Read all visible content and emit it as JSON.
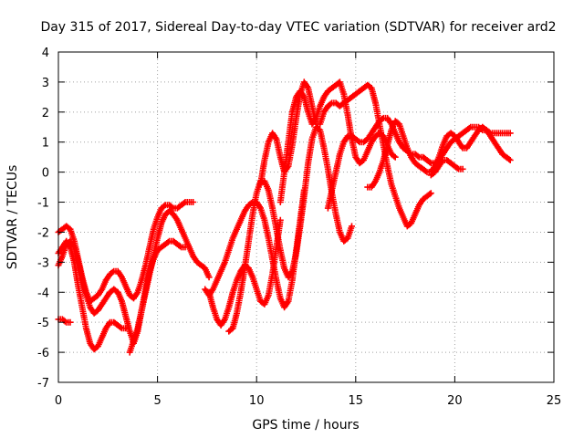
{
  "chart_data": {
    "type": "scatter",
    "title": "Day 315 of 2017, Sidereal Day-to-day VTEC variation (SDTVAR) for receiver ard2",
    "xlabel": "GPS time / hours",
    "ylabel": "SDTVAR / TECUs",
    "xlim": [
      0,
      25
    ],
    "ylim": [
      -7,
      4
    ],
    "xticks": [
      0,
      5,
      10,
      15,
      20,
      25
    ],
    "yticks": [
      -7,
      -6,
      -5,
      -4,
      -3,
      -2,
      -1,
      0,
      1,
      2,
      3,
      4
    ],
    "grid": true,
    "legend": "none",
    "marker": "+",
    "color": "#ff0000",
    "series": [
      {
        "x": [
          0.0,
          0.2,
          0.4,
          0.6,
          0.8,
          1.0,
          1.2,
          1.4,
          1.6,
          1.8,
          2.0,
          2.2,
          2.4,
          2.6,
          2.8,
          3.0,
          3.2,
          3.4,
          3.6,
          3.8,
          4.0,
          4.2,
          4.4,
          4.6,
          4.8,
          5.0,
          5.2,
          5.4,
          5.6,
          5.8,
          6.0,
          6.2,
          6.4,
          6.6,
          6.8
        ],
        "y": [
          -2.0,
          -1.9,
          -1.8,
          -1.9,
          -2.3,
          -2.9,
          -3.5,
          -4.0,
          -4.3,
          -4.2,
          -4.1,
          -3.9,
          -3.6,
          -3.4,
          -3.3,
          -3.3,
          -3.5,
          -3.8,
          -4.1,
          -4.2,
          -4.0,
          -3.6,
          -3.1,
          -2.5,
          -1.9,
          -1.5,
          -1.2,
          -1.1,
          -1.1,
          -1.2,
          -1.2,
          -1.1,
          -1.0,
          -1.0,
          -1.0
        ]
      },
      {
        "x": [
          0.0,
          0.2,
          0.4,
          0.6,
          0.8,
          1.0,
          1.2,
          1.4,
          1.6,
          1.8,
          2.0,
          2.2,
          2.4,
          2.6,
          2.8,
          3.0,
          3.2,
          3.4,
          3.6,
          3.8,
          4.0,
          4.2,
          4.4,
          4.6,
          4.8,
          5.0,
          5.2,
          5.4,
          5.6,
          5.8,
          6.0,
          6.2,
          6.4
        ],
        "y": [
          -3.1,
          -2.8,
          -2.4,
          -2.3,
          -2.5,
          -3.0,
          -3.6,
          -4.1,
          -4.5,
          -4.7,
          -4.6,
          -4.4,
          -4.2,
          -4.0,
          -3.9,
          -4.0,
          -4.3,
          -4.8,
          -5.3,
          -5.7,
          -5.3,
          -4.6,
          -3.9,
          -3.3,
          -2.9,
          -2.6,
          -2.5,
          -2.4,
          -2.3,
          -2.3,
          -2.4,
          -2.5,
          -2.5
        ]
      },
      {
        "x": [
          0.0,
          0.2,
          0.4,
          0.6,
          0.8,
          1.0,
          1.2,
          1.4,
          1.6,
          1.8,
          2.0,
          2.2,
          2.4,
          2.6,
          2.8,
          3.0,
          3.2,
          3.4
        ],
        "y": [
          -2.7,
          -2.5,
          -2.3,
          -2.5,
          -3.0,
          -3.8,
          -4.5,
          -5.2,
          -5.7,
          -5.9,
          -5.8,
          -5.5,
          -5.2,
          -5.0,
          -5.0,
          -5.1,
          -5.2,
          -5.2
        ]
      },
      {
        "x": [
          0.0,
          0.2,
          0.4,
          0.6
        ],
        "y": [
          -4.9,
          -4.9,
          -5.0,
          -5.0
        ]
      },
      {
        "x": [
          3.6,
          3.8,
          4.0,
          4.2,
          4.4,
          4.6,
          4.8,
          5.0,
          5.2,
          5.4,
          5.6,
          5.8,
          6.0,
          6.2,
          6.4,
          6.6,
          6.8,
          7.0,
          7.2,
          7.4,
          7.6
        ],
        "y": [
          -6.0,
          -5.6,
          -5.2,
          -4.6,
          -4.0,
          -3.4,
          -2.8,
          -2.2,
          -1.7,
          -1.4,
          -1.3,
          -1.4,
          -1.6,
          -1.9,
          -2.2,
          -2.5,
          -2.8,
          -3.0,
          -3.1,
          -3.2,
          -3.5
        ]
      },
      {
        "x": [
          7.4,
          7.6,
          7.8,
          8.0,
          8.2,
          8.4,
          8.6,
          8.8,
          9.0,
          9.2,
          9.4,
          9.6,
          9.8,
          10.0,
          10.2,
          10.4,
          10.6,
          10.8,
          11.0,
          11.2,
          11.4,
          11.6,
          11.8,
          12.0,
          12.2,
          12.4
        ],
        "y": [
          -3.9,
          -4.1,
          -3.9,
          -3.6,
          -3.3,
          -3.0,
          -2.6,
          -2.2,
          -1.9,
          -1.6,
          -1.3,
          -1.1,
          -1.0,
          -1.0,
          -1.2,
          -1.6,
          -2.2,
          -2.9,
          -3.6,
          -4.2,
          -4.5,
          -4.3,
          -3.6,
          -2.6,
          -1.6,
          -0.6
        ]
      },
      {
        "x": [
          7.6,
          7.8,
          8.0,
          8.2,
          8.4,
          8.6,
          8.8,
          9.0,
          9.2,
          9.4,
          9.6,
          9.8,
          10.0,
          10.2,
          10.4,
          10.6,
          10.8,
          11.0,
          11.2
        ],
        "y": [
          -4.0,
          -4.5,
          -4.9,
          -5.1,
          -4.9,
          -4.5,
          -4.0,
          -3.6,
          -3.3,
          -3.1,
          -3.2,
          -3.5,
          -3.9,
          -4.3,
          -4.4,
          -4.1,
          -3.4,
          -2.5,
          -1.6
        ]
      },
      {
        "x": [
          8.6,
          8.8,
          9.0,
          9.2,
          9.4,
          9.6,
          9.8,
          10.0,
          10.2,
          10.4,
          10.6,
          10.8,
          11.0,
          11.2,
          11.4,
          11.6,
          11.8,
          12.0,
          12.2,
          12.4,
          12.6,
          12.8,
          13.0,
          13.2,
          13.4,
          13.6,
          13.8,
          14.0,
          14.2,
          14.4,
          14.6,
          14.8
        ],
        "y": [
          -5.3,
          -5.2,
          -4.7,
          -4.0,
          -3.2,
          -2.3,
          -1.4,
          -0.7,
          -0.3,
          -0.3,
          -0.6,
          -1.2,
          -1.9,
          -2.6,
          -3.2,
          -3.5,
          -3.3,
          -2.7,
          -1.8,
          -0.8,
          0.3,
          1.1,
          1.5,
          1.4,
          0.8,
          0.1,
          -0.7,
          -1.4,
          -2.0,
          -2.3,
          -2.2,
          -1.8
        ]
      },
      {
        "x": [
          10.2,
          10.4,
          10.6,
          10.8,
          11.0,
          11.2,
          11.4,
          11.6,
          11.8,
          12.0,
          12.2,
          12.4,
          12.6,
          12.8,
          13.0,
          13.2,
          13.4,
          13.6,
          13.8,
          14.0,
          14.2,
          14.4,
          14.6,
          14.8,
          15.0,
          15.2,
          15.4,
          15.6,
          15.8,
          16.0,
          16.2,
          16.4,
          16.6,
          16.8,
          17.0,
          17.2,
          17.4,
          17.6,
          17.8,
          18.0,
          18.2,
          18.4,
          18.6,
          18.8
        ],
        "y": [
          -0.4,
          0.4,
          1.0,
          1.3,
          1.1,
          0.5,
          0.0,
          0.2,
          0.9,
          1.8,
          2.6,
          3.0,
          2.8,
          2.2,
          1.6,
          1.6,
          2.0,
          2.2,
          2.3,
          2.3,
          2.2,
          2.3,
          2.4,
          2.5,
          2.6,
          2.7,
          2.8,
          2.9,
          2.8,
          2.3,
          1.6,
          0.9,
          0.2,
          -0.4,
          -0.8,
          -1.2,
          -1.5,
          -1.8,
          -1.7,
          -1.4,
          -1.1,
          -0.9,
          -0.8,
          -0.7
        ]
      },
      {
        "x": [
          11.2,
          11.4,
          11.6,
          11.8,
          12.0,
          12.2,
          12.4,
          12.6,
          12.8,
          13.0,
          13.2,
          13.4,
          13.6,
          13.8,
          14.0,
          14.2,
          14.4,
          14.6,
          14.8,
          15.0,
          15.2,
          15.4,
          15.6,
          15.8,
          16.0,
          16.2,
          16.4,
          16.6,
          16.8,
          17.0
        ],
        "y": [
          -1.0,
          0.0,
          1.0,
          2.0,
          2.5,
          2.7,
          2.5,
          2.0,
          1.6,
          1.8,
          2.2,
          2.5,
          2.7,
          2.8,
          2.9,
          3.0,
          2.6,
          1.9,
          1.1,
          0.5,
          0.3,
          0.4,
          0.7,
          1.0,
          1.2,
          1.3,
          1.2,
          0.9,
          0.6,
          0.5
        ]
      },
      {
        "x": [
          13.6,
          13.8,
          14.0,
          14.2,
          14.4,
          14.6,
          14.8,
          15.0,
          15.2,
          15.4,
          15.6,
          15.8,
          16.0,
          16.2,
          16.4,
          16.6,
          16.8,
          17.0,
          17.2,
          17.4,
          17.6,
          17.8,
          18.0,
          18.2,
          18.4,
          18.6,
          18.8,
          19.0,
          19.2,
          19.4,
          19.6,
          19.8,
          20.0,
          20.2,
          20.4,
          20.6,
          20.8,
          21.0,
          21.2,
          21.4,
          21.6,
          21.8,
          22.0,
          22.2,
          22.4,
          22.6,
          22.8
        ],
        "y": [
          -1.2,
          -0.6,
          0.0,
          0.6,
          1.0,
          1.2,
          1.2,
          1.1,
          1.0,
          1.0,
          1.1,
          1.3,
          1.5,
          1.7,
          1.8,
          1.8,
          1.6,
          1.3,
          1.0,
          0.8,
          0.7,
          0.6,
          0.6,
          0.5,
          0.5,
          0.4,
          0.3,
          0.3,
          0.4,
          0.6,
          0.8,
          1.0,
          1.1,
          1.2,
          1.3,
          1.4,
          1.5,
          1.5,
          1.5,
          1.4,
          1.4,
          1.3,
          1.3,
          1.3,
          1.3,
          1.3,
          1.3
        ]
      },
      {
        "x": [
          15.6,
          15.8,
          16.0,
          16.2,
          16.4,
          16.6,
          16.8,
          17.0,
          17.2,
          17.4,
          17.6,
          17.8,
          18.0,
          18.2,
          18.4,
          18.6,
          18.8,
          19.0,
          19.2,
          19.4,
          19.6,
          19.8,
          20.0,
          20.2,
          20.4,
          20.6,
          20.8,
          21.0,
          21.2,
          21.4,
          21.6,
          21.8,
          22.0,
          22.2,
          22.4,
          22.6,
          22.8
        ],
        "y": [
          -0.5,
          -0.5,
          -0.3,
          0.0,
          0.4,
          0.9,
          1.4,
          1.7,
          1.6,
          1.2,
          0.8,
          0.5,
          0.3,
          0.2,
          0.1,
          0.0,
          0.0,
          0.2,
          0.5,
          0.9,
          1.2,
          1.3,
          1.2,
          1.0,
          0.8,
          0.8,
          1.0,
          1.2,
          1.4,
          1.5,
          1.4,
          1.2,
          1.0,
          0.8,
          0.6,
          0.5,
          0.4
        ]
      },
      {
        "x": [
          18.8,
          19.0,
          19.2,
          19.4,
          19.6,
          19.8,
          20.0,
          20.2,
          20.4
        ],
        "y": [
          -0.1,
          0.0,
          0.2,
          0.4,
          0.4,
          0.3,
          0.2,
          0.1,
          0.1
        ]
      }
    ]
  }
}
